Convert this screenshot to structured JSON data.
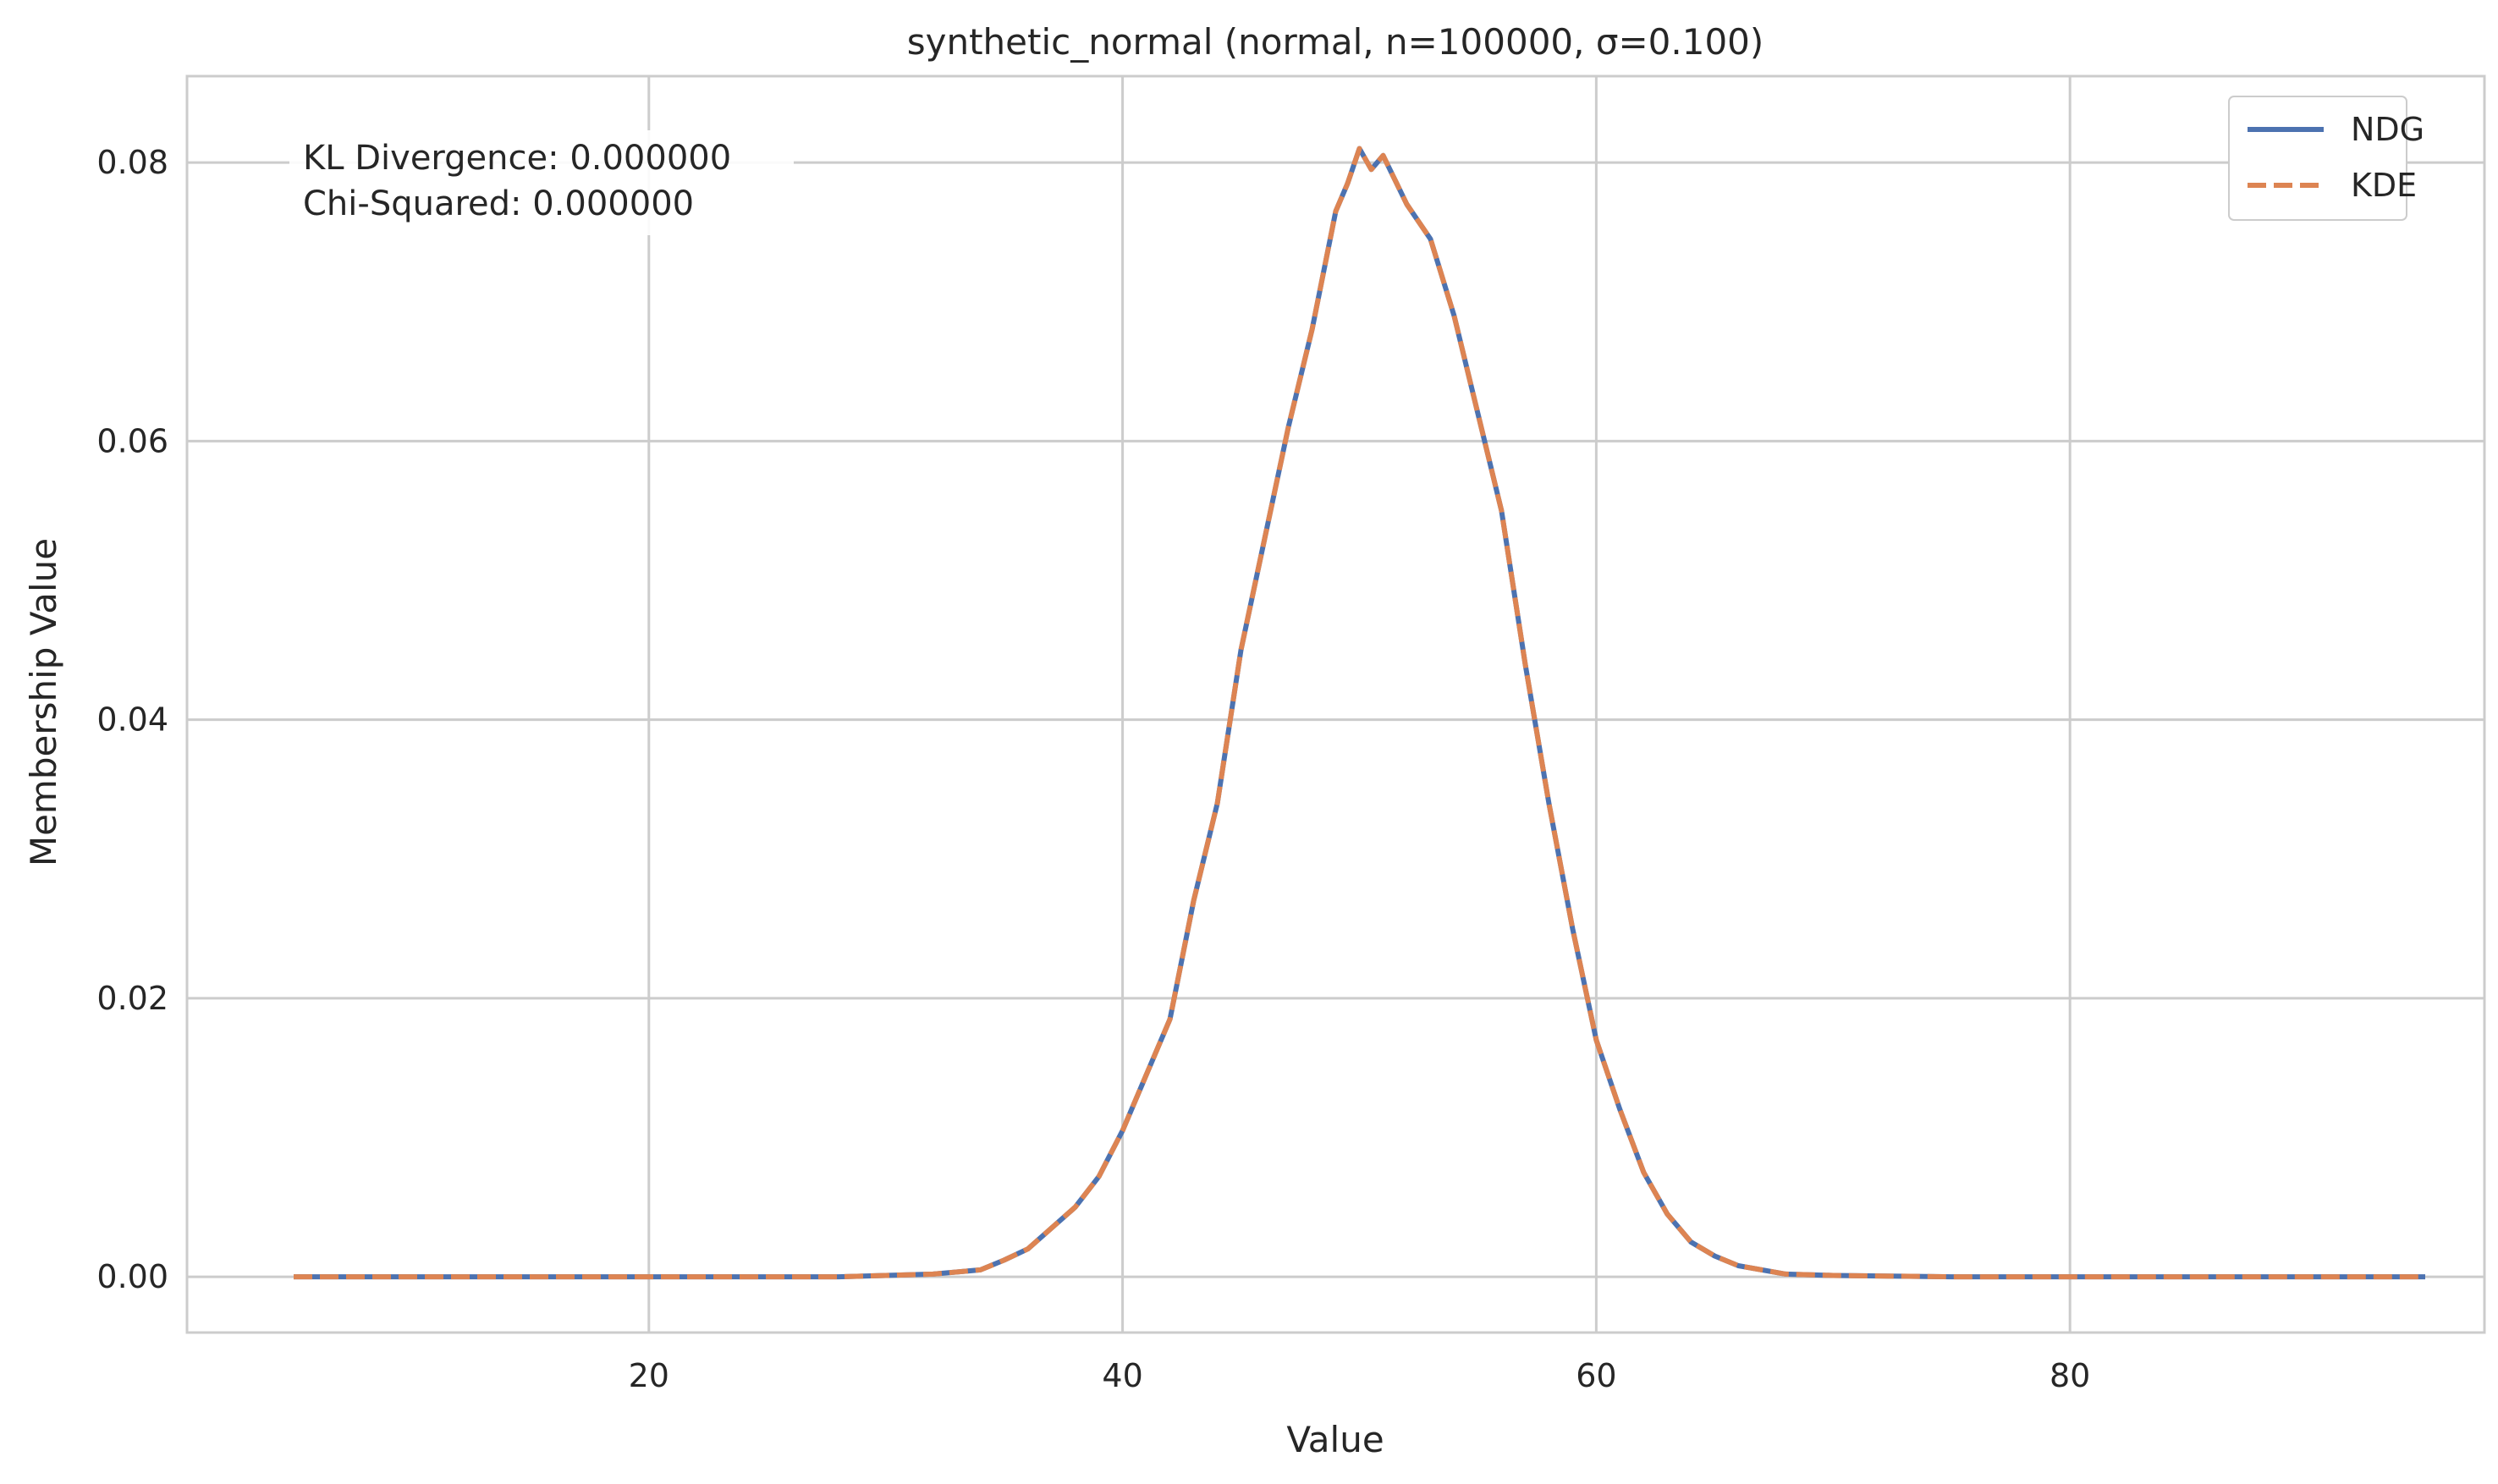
{
  "chart_data": {
    "type": "line",
    "title": "synthetic_normal (normal, n=100000, σ=0.100)",
    "xlabel": "Value",
    "ylabel": "Membership Value",
    "xlim": [
      0.5,
      97.5
    ],
    "ylim": [
      -0.004,
      0.0862
    ],
    "xticks": [
      20,
      40,
      60,
      80
    ],
    "xtick_labels": [
      "20",
      "40",
      "60",
      "80"
    ],
    "yticks": [
      0.0,
      0.02,
      0.04,
      0.06,
      0.08
    ],
    "ytick_labels": [
      "0.00",
      "0.02",
      "0.04",
      "0.06",
      "0.08"
    ],
    "grid": true,
    "legend_position": "top-right",
    "annotation": {
      "kl_text": "KL Divergence: 0.000000",
      "chi_text": "Chi-Squared: 0.000000"
    },
    "x": [
      5,
      10,
      15,
      20,
      25,
      28,
      30,
      32,
      34,
      35,
      36,
      37,
      38,
      39,
      40,
      41,
      42,
      43,
      44,
      45,
      46,
      47,
      48,
      49,
      49.5,
      50,
      50.5,
      51,
      52,
      53,
      54,
      55,
      56,
      57,
      58,
      59,
      60,
      61,
      62,
      63,
      64,
      65,
      66,
      68,
      70,
      75,
      80,
      85,
      90,
      95
    ],
    "series": [
      {
        "name": "NDG",
        "color": "#4c72b0",
        "style": "solid",
        "values": [
          0.0,
          0.0,
          0.0,
          0.0,
          0.0,
          0.0,
          0.0001,
          0.0002,
          0.0005,
          0.0012,
          0.002,
          0.0035,
          0.005,
          0.0072,
          0.0105,
          0.0145,
          0.0185,
          0.027,
          0.034,
          0.045,
          0.053,
          0.061,
          0.068,
          0.0765,
          0.0785,
          0.081,
          0.0795,
          0.0805,
          0.077,
          0.0745,
          0.069,
          0.062,
          0.055,
          0.044,
          0.034,
          0.025,
          0.017,
          0.012,
          0.0075,
          0.0045,
          0.0025,
          0.0015,
          0.0008,
          0.0002,
          0.0001,
          0.0,
          0.0,
          0.0,
          0.0,
          0.0
        ]
      },
      {
        "name": "KDE",
        "color": "#dd8452",
        "style": "dashed",
        "values": [
          0.0,
          0.0,
          0.0,
          0.0,
          0.0,
          0.0,
          0.0001,
          0.0002,
          0.0005,
          0.0012,
          0.002,
          0.0035,
          0.005,
          0.0072,
          0.0105,
          0.0145,
          0.0185,
          0.027,
          0.034,
          0.045,
          0.053,
          0.061,
          0.068,
          0.0765,
          0.0785,
          0.081,
          0.0795,
          0.0805,
          0.077,
          0.0745,
          0.069,
          0.062,
          0.055,
          0.044,
          0.034,
          0.025,
          0.017,
          0.012,
          0.0075,
          0.0045,
          0.0025,
          0.0015,
          0.0008,
          0.0002,
          0.0001,
          0.0,
          0.0,
          0.0,
          0.0,
          0.0
        ]
      }
    ]
  }
}
